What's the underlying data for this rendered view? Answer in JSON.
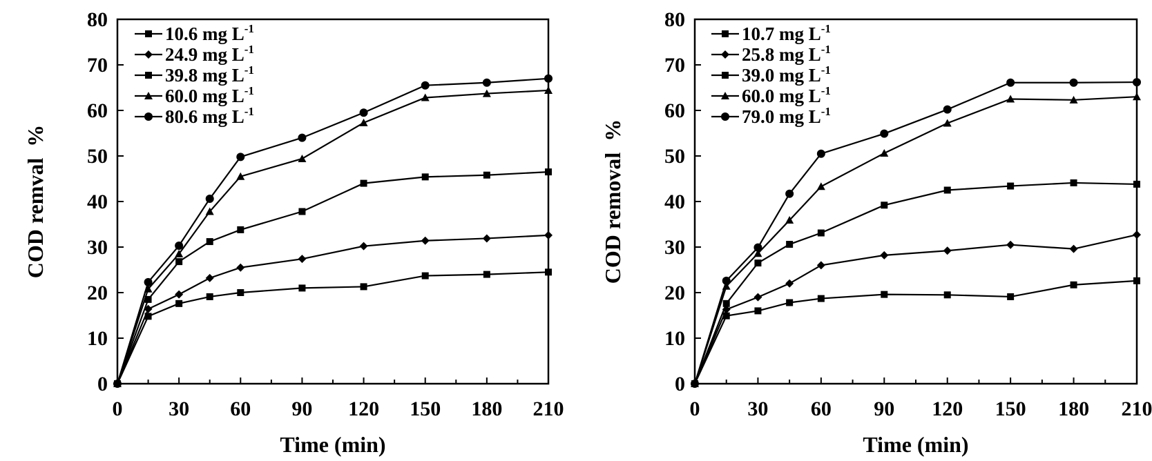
{
  "chart_data": [
    {
      "type": "line",
      "xlabel": "Time (min)",
      "ylabel": "COD remval  %",
      "xlim": [
        0,
        210
      ],
      "ylim": [
        0,
        80
      ],
      "xticks": [
        0,
        30,
        60,
        90,
        120,
        150,
        180,
        210
      ],
      "yticks": [
        0,
        10,
        20,
        30,
        40,
        50,
        60,
        70,
        80
      ],
      "grid": false,
      "legend_position": "top-left",
      "x": [
        0,
        15,
        30,
        45,
        60,
        90,
        120,
        150,
        180,
        210
      ],
      "series": [
        {
          "name": "10.6 mg L",
          "unit_sup": "-1",
          "marker": "square",
          "values": [
            0,
            14.8,
            17.6,
            19.1,
            20.0,
            21.0,
            21.3,
            23.7,
            24.0,
            24.5
          ]
        },
        {
          "name": "24.9 mg L",
          "unit_sup": "-1",
          "marker": "diamond",
          "values": [
            0,
            16.4,
            19.6,
            23.2,
            25.5,
            27.4,
            30.2,
            31.4,
            31.9,
            32.6
          ]
        },
        {
          "name": "39.8 mg L",
          "unit_sup": "-1",
          "marker": "square",
          "values": [
            0,
            18.5,
            26.8,
            31.2,
            33.8,
            37.8,
            44.0,
            45.4,
            45.8,
            46.5
          ]
        },
        {
          "name": "60.0 mg L",
          "unit_sup": "-1",
          "marker": "triangle",
          "values": [
            0,
            20.8,
            28.5,
            37.8,
            45.5,
            49.4,
            57.3,
            62.8,
            63.7,
            64.4
          ]
        },
        {
          "name": "80.6 mg L",
          "unit_sup": "-1",
          "marker": "circle",
          "values": [
            0,
            22.3,
            30.3,
            40.6,
            49.8,
            54.0,
            59.5,
            65.5,
            66.1,
            67.0
          ]
        }
      ]
    },
    {
      "type": "line",
      "xlabel": "Time (min)",
      "ylabel": "COD removal  %",
      "xlim": [
        0,
        210
      ],
      "ylim": [
        0,
        80
      ],
      "xticks": [
        0,
        30,
        60,
        90,
        120,
        150,
        180,
        210
      ],
      "yticks": [
        0,
        10,
        20,
        30,
        40,
        50,
        60,
        70,
        80
      ],
      "grid": false,
      "legend_position": "top-left",
      "x": [
        0,
        15,
        30,
        45,
        60,
        90,
        120,
        150,
        180,
        210
      ],
      "series": [
        {
          "name": "10.7 mg L",
          "unit_sup": "-1",
          "marker": "square",
          "values": [
            0,
            14.9,
            16.0,
            17.8,
            18.7,
            19.6,
            19.5,
            19.1,
            21.7,
            22.6
          ]
        },
        {
          "name": "25.8 mg L",
          "unit_sup": "-1",
          "marker": "diamond",
          "values": [
            0,
            16.3,
            19.0,
            22.0,
            26.0,
            28.2,
            29.2,
            30.5,
            29.6,
            32.7
          ]
        },
        {
          "name": "39.0 mg L",
          "unit_sup": "-1",
          "marker": "square",
          "values": [
            0,
            17.6,
            26.5,
            30.6,
            33.1,
            39.2,
            42.5,
            43.4,
            44.1,
            43.8
          ]
        },
        {
          "name": "60.0 mg L",
          "unit_sup": "-1",
          "marker": "triangle",
          "values": [
            0,
            21.4,
            28.6,
            35.9,
            43.3,
            50.6,
            57.2,
            62.5,
            62.3,
            63.0
          ]
        },
        {
          "name": "79.0 mg L",
          "unit_sup": "-1",
          "marker": "circle",
          "values": [
            0,
            22.6,
            29.9,
            41.7,
            50.5,
            54.9,
            60.2,
            66.1,
            66.1,
            66.2
          ]
        }
      ]
    }
  ]
}
